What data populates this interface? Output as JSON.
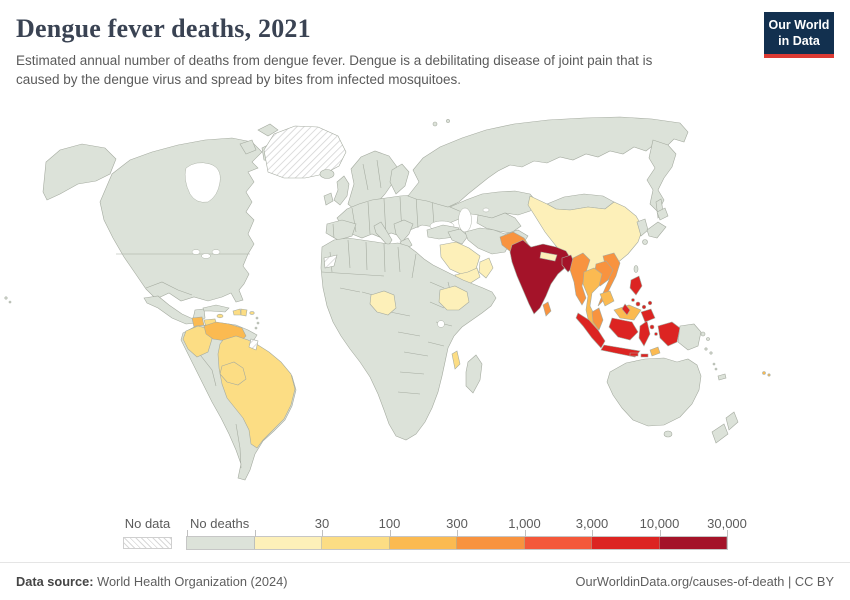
{
  "header": {
    "title": "Dengue fever deaths, 2021",
    "subtitle": "Estimated annual number of deaths from dengue fever. Dengue is a debilitating disease of joint pain that is caused by the dengue virus and spread by bites from infected mosquitoes.",
    "logo": {
      "line1": "Our World",
      "line2": "in Data",
      "bg": "#12304f",
      "accent": "#dc3a33"
    }
  },
  "legend": {
    "no_data_label": "No data",
    "bins": [
      {
        "key": "no-deaths",
        "label": "No deaths",
        "color": "#dce2d9"
      },
      {
        "key": "lt-30",
        "label": "30",
        "color": "#fdf0b9"
      },
      {
        "key": "30-100",
        "label": "100",
        "color": "#fcdd84"
      },
      {
        "key": "100-300",
        "label": "300",
        "color": "#fbba51"
      },
      {
        "key": "300-1000",
        "label": "1,000",
        "color": "#f8933f"
      },
      {
        "key": "1000-3000",
        "label": "3,000",
        "color": "#f4583a"
      },
      {
        "key": "3000-10000",
        "label": "10,000",
        "color": "#dc2422"
      },
      {
        "key": "10000-30000",
        "label": "30,000",
        "color": "#a41329"
      }
    ]
  },
  "map": {
    "palette": {
      "no-deaths": "#dce2d9",
      "lt-30": "#fdf0b9",
      "30-100": "#fcdd84",
      "100-300": "#fbba51",
      "300-1000": "#f8933f",
      "1000-3000": "#f4583a",
      "3000-10000": "#dc2422",
      "10000-30000": "#a41329"
    },
    "countries": {
      "greenland": "no-data",
      "western-sahara": "no-data",
      "french-guiana": "no-data",
      "china": "lt-30",
      "nepal": "lt-30",
      "saudi-arabia": "lt-30",
      "yemen": "lt-30",
      "oman": "lt-30",
      "ethiopia": "lt-30",
      "nigeria": "lt-30",
      "brazil": "30-100",
      "colombia": "30-100",
      "bolivia": "30-100",
      "honduras": "30-100",
      "el-salvador": "30-100",
      "nicaragua": "30-100",
      "haiti": "30-100",
      "dominican-republic": "30-100",
      "jamaica": "30-100",
      "puerto-rico": "30-100",
      "malawi": "30-100",
      "venezuela": "100-300",
      "guatemala": "100-300",
      "thailand": "100-300",
      "cambodia": "100-300",
      "east-malaysia": "100-300",
      "timor-leste": "100-300",
      "fiji": "100-300",
      "pakistan": "300-1000",
      "myanmar": "300-1000",
      "laos": "300-1000",
      "vietnam": "300-1000",
      "malaysia": "300-1000",
      "sri-lanka": "300-1000",
      "indonesia": "3000-10000",
      "philippines": "3000-10000",
      "india": "10000-30000",
      "bangladesh": "10000-30000"
    }
  },
  "chart_data": {
    "type": "choropleth",
    "title": "Dengue fever deaths, 2021",
    "unit": "estimated annual deaths from dengue fever",
    "bin_edges": [
      0,
      30,
      100,
      300,
      1000,
      3000,
      10000,
      30000
    ],
    "bin_labels": [
      "No deaths",
      "30",
      "100",
      "300",
      "1,000",
      "3,000",
      "10,000",
      "30,000"
    ],
    "no_data_countries": [
      "Greenland",
      "Western Sahara",
      "French Guiana"
    ],
    "country_bins": {
      "India": "10,000-30,000",
      "Bangladesh": "10,000-30,000",
      "Indonesia": "3,000-10,000",
      "Philippines": "3,000-10,000",
      "Pakistan": "300-1,000",
      "Myanmar": "300-1,000",
      "Laos": "300-1,000",
      "Vietnam": "300-1,000",
      "Malaysia": "300-1,000",
      "Sri Lanka": "300-1,000",
      "Thailand": "100-300",
      "Cambodia": "100-300",
      "Venezuela": "100-300",
      "Guatemala": "100-300",
      "Timor-Leste": "100-300",
      "Fiji": "100-300",
      "Brazil": "30-100",
      "Colombia": "30-100",
      "Bolivia": "30-100",
      "Honduras": "30-100",
      "El Salvador": "30-100",
      "Nicaragua": "30-100",
      "Haiti": "30-100",
      "Dominican Republic": "30-100",
      "Jamaica": "30-100",
      "Puerto Rico": "30-100",
      "Malawi": "30-100",
      "China": "1-30",
      "Nepal": "1-30",
      "Saudi Arabia": "1-30",
      "Yemen": "1-30",
      "Oman": "1-30",
      "Ethiopia": "1-30",
      "Nigeria": "1-30",
      "All other shown countries": "No deaths"
    }
  },
  "footer": {
    "source_label": "Data source:",
    "source": "World Health Organization (2024)",
    "link": "OurWorldinData.org/causes-of-death",
    "license": "CC BY",
    "separator": "|"
  }
}
